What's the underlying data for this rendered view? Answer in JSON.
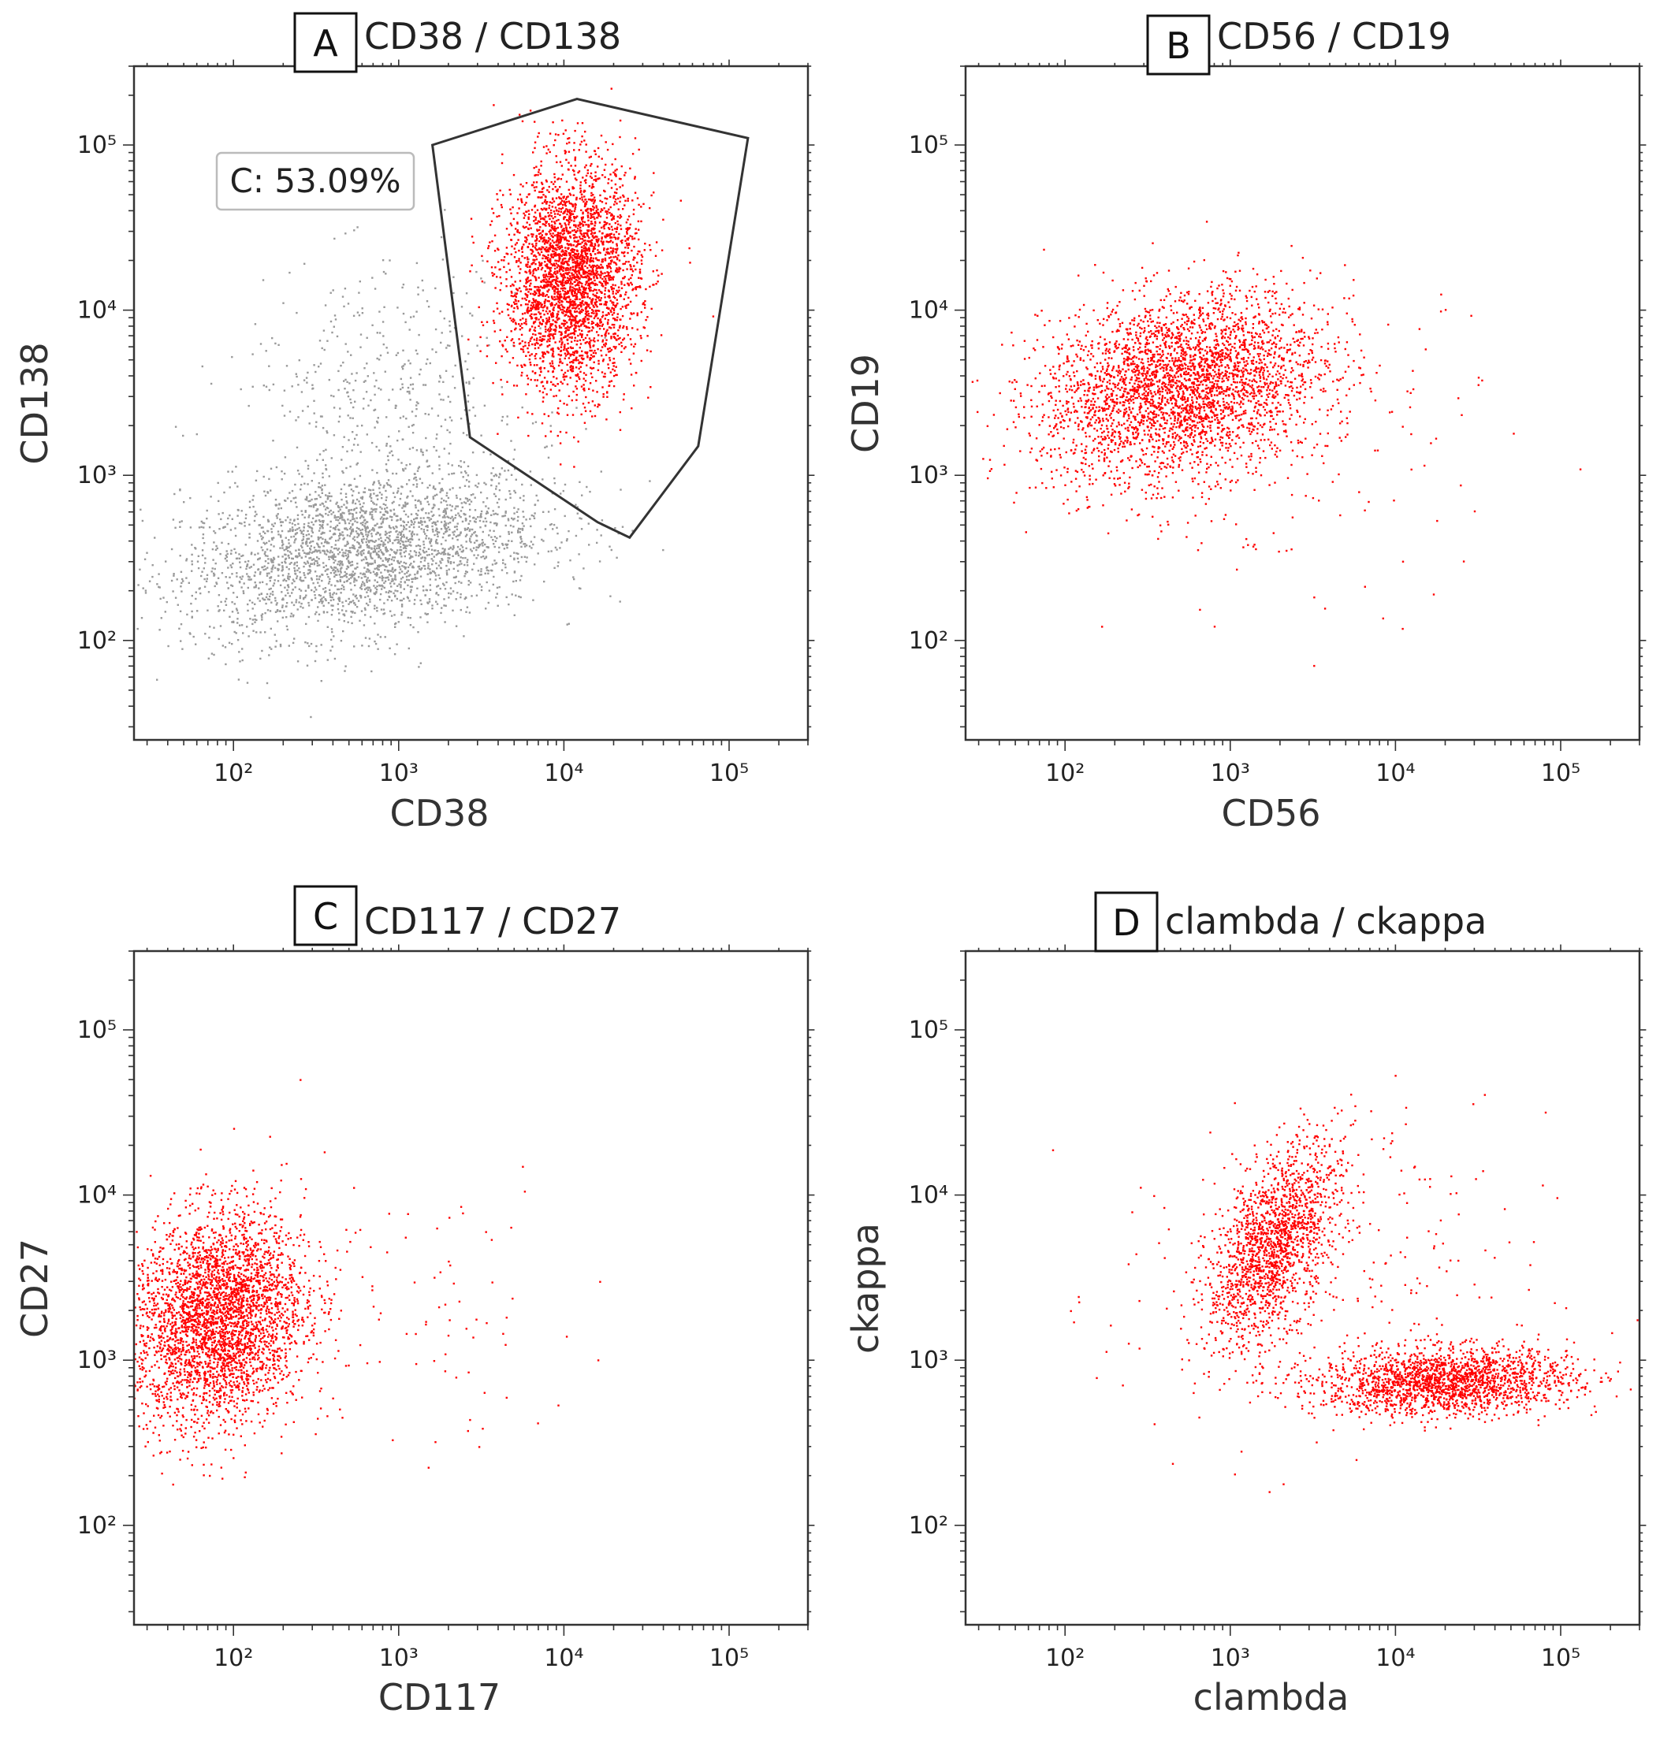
{
  "figure_colors": {
    "event_red": "#ff0000",
    "event_gray": "#9a9a9a",
    "frame": "#333333"
  },
  "chart_data": [
    {
      "type": "scatter",
      "panel_label": "A",
      "title": "CD38 / CD138",
      "xlabel": "CD38",
      "ylabel": "CD138",
      "xlim": [
        25,
        300000
      ],
      "ylim": [
        25,
        300000
      ],
      "scale": "log",
      "tick_labels": {
        "x": [
          "10²",
          "10³",
          "10⁴",
          "10⁵"
        ],
        "y": [
          "10⁵",
          "10⁴",
          "10³",
          "10²"
        ]
      },
      "tick_values": [
        100,
        1000,
        10000,
        100000
      ],
      "gate": {
        "label": "C: 53.09%",
        "polygon": [
          [
            1600,
            100000
          ],
          [
            12000,
            190000
          ],
          [
            130000,
            110000
          ],
          [
            65000,
            1500
          ],
          [
            25000,
            420
          ],
          [
            16000,
            520
          ],
          [
            2700,
            1700
          ]
        ]
      },
      "series": [
        {
          "name": "gray-events",
          "color": "#9a9a9a",
          "clusters": [
            {
              "cx": 600,
              "cy": 350,
              "sx": 0.55,
              "sy": 0.25,
              "rho": 0.3,
              "n": 2800
            },
            {
              "cx": 800,
              "cy": 3000,
              "sx": 0.45,
              "sy": 0.4,
              "rho": 0.1,
              "n": 450
            }
          ]
        },
        {
          "name": "gated-events",
          "color": "#ff0000",
          "clusters": [
            {
              "cx": 11000,
              "cy": 16000,
              "sx": 0.2,
              "sy": 0.34,
              "rho": 0.05,
              "n": 3200
            }
          ]
        }
      ]
    },
    {
      "type": "scatter",
      "panel_label": "B",
      "title": "CD56 / CD19",
      "xlabel": "CD56",
      "ylabel": "CD19",
      "xlim": [
        25,
        300000
      ],
      "ylim": [
        25,
        300000
      ],
      "scale": "log",
      "tick_labels": {
        "x": [
          "10²",
          "10³",
          "10⁴",
          "10⁵"
        ],
        "y": [
          "10⁵",
          "10⁴",
          "10³",
          "10²"
        ]
      },
      "tick_values": [
        100,
        1000,
        10000,
        100000
      ],
      "series": [
        {
          "name": "events",
          "color": "#ff0000",
          "clusters": [
            {
              "cx": 500,
              "cy": 3500,
              "sx": 0.42,
              "sy": 0.28,
              "rho": 0.25,
              "n": 3400
            },
            {
              "cx": 3000,
              "cy": 1200,
              "sx": 0.6,
              "sy": 0.5,
              "rho": 0.0,
              "n": 120
            }
          ]
        }
      ]
    },
    {
      "type": "scatter",
      "panel_label": "C",
      "title": "CD117 / CD27",
      "xlabel": "CD117",
      "ylabel": "CD27",
      "xlim": [
        25,
        300000
      ],
      "ylim": [
        25,
        300000
      ],
      "scale": "log",
      "tick_labels": {
        "x": [
          "10²",
          "10³",
          "10⁴",
          "10⁵"
        ],
        "y": [
          "10⁵",
          "10⁴",
          "10³",
          "10²"
        ]
      },
      "tick_values": [
        100,
        1000,
        10000,
        100000
      ],
      "series": [
        {
          "name": "events",
          "color": "#ff0000",
          "clusters": [
            {
              "cx": 80,
              "cy": 1800,
              "sx": 0.26,
              "sy": 0.32,
              "rho": 0.15,
              "n": 3400
            },
            {
              "cx": 1200,
              "cy": 2000,
              "sx": 0.5,
              "sy": 0.45,
              "rho": 0.0,
              "n": 90
            }
          ]
        }
      ]
    },
    {
      "type": "scatter",
      "panel_label": "D",
      "title": "clambda / ckappa",
      "xlabel": "clambda",
      "ylabel": "ckappa",
      "xlim": [
        25,
        300000
      ],
      "ylim": [
        25,
        300000
      ],
      "scale": "log",
      "tick_labels": {
        "x": [
          "10²",
          "10³",
          "10⁴",
          "10⁵"
        ],
        "y": [
          "10⁵",
          "10⁴",
          "10³",
          "10²"
        ]
      },
      "tick_values": [
        100,
        1000,
        10000,
        100000
      ],
      "series": [
        {
          "name": "events",
          "color": "#ff0000",
          "clusters": [
            {
              "cx": 1800,
              "cy": 5000,
              "sx": 0.2,
              "sy": 0.3,
              "rho": 0.55,
              "n": 1700
            },
            {
              "cx": 20000,
              "cy": 750,
              "sx": 0.38,
              "sy": 0.1,
              "rho": 0.1,
              "n": 1900
            },
            {
              "cx": 4000,
              "cy": 2500,
              "sx": 0.65,
              "sy": 0.55,
              "rho": 0.0,
              "n": 260
            }
          ]
        }
      ]
    }
  ]
}
